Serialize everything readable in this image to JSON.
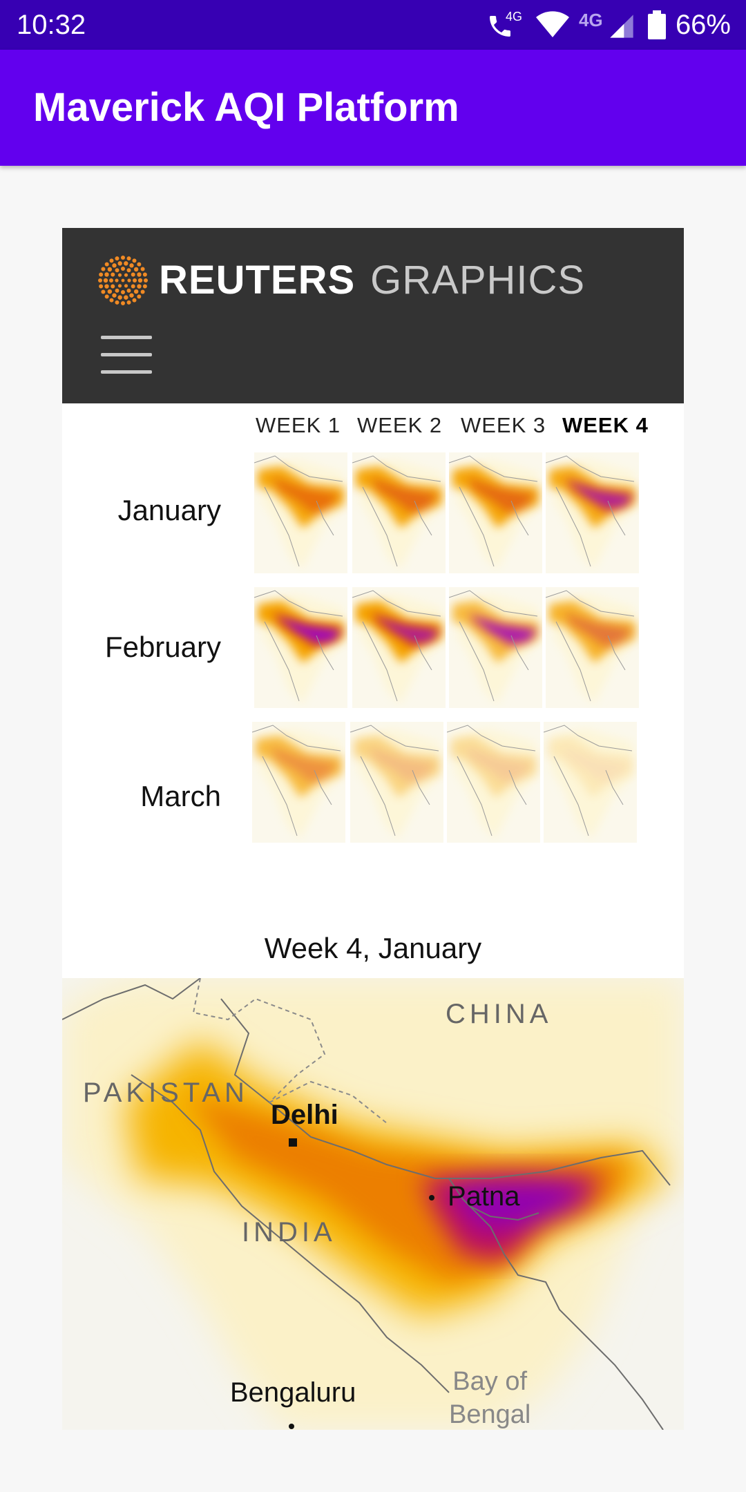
{
  "status_bar": {
    "time": "10:32",
    "network_label": "4G",
    "mobile_label": "4G",
    "battery": "66%",
    "icons": [
      "wifi-calling-icon",
      "wifi-icon",
      "signal-icon",
      "battery-icon"
    ]
  },
  "app_bar": {
    "title": "Maverick AQI Platform",
    "color": "#6200ee",
    "status_color": "#3700b3"
  },
  "reuters": {
    "brand": "REUTERS",
    "section": "GRAPHICS",
    "menu_icon": "hamburger-menu-icon"
  },
  "grid": {
    "weeks": [
      "WEEK 1",
      "WEEK 2",
      "WEEK 3",
      "WEEK 4"
    ],
    "active_week": 3,
    "months": [
      "January",
      "February",
      "March"
    ]
  },
  "detail": {
    "caption": "Week 4, January",
    "labels": {
      "china": "CHINA",
      "pakistan": "PAKISTAN",
      "india": "INDIA",
      "delhi": "Delhi",
      "patna": "Patna",
      "bengaluru": "Bengaluru",
      "bay_line1": "Bay of",
      "bay_line2": "Bengal"
    }
  },
  "colors": {
    "low": "#fdf6d8",
    "mid": "#f5a300",
    "high": "#e86a00",
    "severe": "#9b00c8"
  }
}
